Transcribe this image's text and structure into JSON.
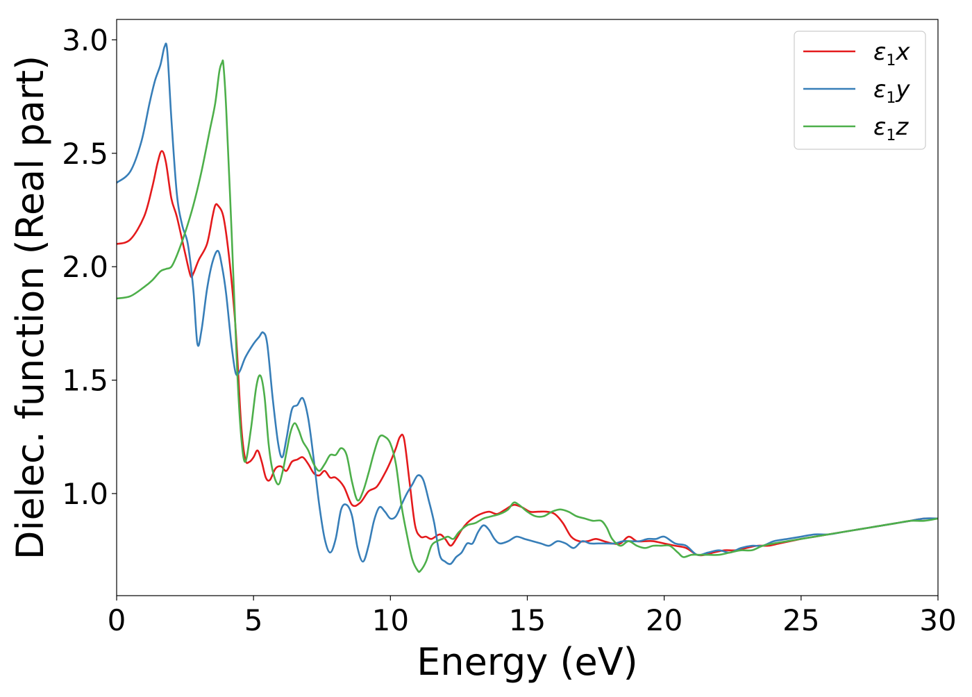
{
  "chart_data": {
    "type": "line",
    "xlabel": "Energy (eV)",
    "ylabel": "Dielec. function (Real part)",
    "xlim": [
      0,
      30
    ],
    "ylim": [
      0.55,
      3.09
    ],
    "xticks": [
      0,
      5,
      10,
      15,
      20,
      25,
      30
    ],
    "xtick_labels": [
      "0",
      "5",
      "10",
      "15",
      "20",
      "25",
      "30"
    ],
    "yticks": [
      1.0,
      1.5,
      2.0,
      2.5,
      3.0
    ],
    "ytick_labels": [
      "1.0",
      "1.5",
      "2.0",
      "2.5",
      "3.0"
    ],
    "grid": false,
    "legend_position": "top-right",
    "series": [
      {
        "name": "ε1x",
        "label_main": "ε",
        "label_sub": "1",
        "label_var": "x",
        "color": "#e41a1c",
        "x": [
          0,
          0.5,
          1.0,
          1.3,
          1.5,
          1.65,
          1.8,
          2.0,
          2.2,
          2.5,
          2.7,
          2.8,
          3.0,
          3.3,
          3.5,
          3.6,
          3.7,
          3.9,
          4.1,
          4.3,
          4.4,
          4.55,
          4.7,
          4.85,
          5.0,
          5.15,
          5.3,
          5.45,
          5.6,
          5.8,
          6.0,
          6.2,
          6.4,
          6.6,
          6.8,
          7.0,
          7.2,
          7.4,
          7.6,
          7.8,
          8.0,
          8.3,
          8.6,
          8.9,
          9.2,
          9.5,
          9.8,
          10.0,
          10.2,
          10.35,
          10.5,
          10.7,
          10.9,
          11.1,
          11.3,
          11.5,
          11.8,
          12.0,
          12.2,
          12.4,
          12.6,
          12.8,
          13.0,
          13.3,
          13.6,
          13.9,
          14.2,
          14.5,
          14.8,
          15.1,
          15.4,
          15.7,
          16.0,
          16.3,
          16.6,
          16.9,
          17.2,
          17.5,
          17.8,
          18.1,
          18.4,
          18.7,
          19.0,
          19.3,
          19.6,
          20.0,
          20.4,
          20.8,
          21.2,
          21.5,
          21.8,
          22.2,
          22.6,
          23.0,
          23.4,
          23.8,
          24.2,
          24.6,
          25.0,
          25.5,
          26.0,
          26.5,
          27.0,
          27.5,
          28.0,
          28.5,
          29.0,
          29.5,
          30.0
        ],
        "y": [
          2.1,
          2.12,
          2.22,
          2.35,
          2.46,
          2.51,
          2.46,
          2.3,
          2.22,
          2.06,
          1.96,
          1.97,
          2.03,
          2.1,
          2.22,
          2.27,
          2.27,
          2.22,
          2.05,
          1.8,
          1.62,
          1.3,
          1.15,
          1.14,
          1.16,
          1.19,
          1.14,
          1.07,
          1.06,
          1.11,
          1.12,
          1.1,
          1.14,
          1.15,
          1.16,
          1.13,
          1.09,
          1.08,
          1.1,
          1.07,
          1.07,
          1.03,
          0.95,
          0.96,
          1.01,
          1.03,
          1.09,
          1.14,
          1.2,
          1.25,
          1.24,
          1.05,
          0.86,
          0.81,
          0.81,
          0.8,
          0.82,
          0.8,
          0.77,
          0.8,
          0.84,
          0.87,
          0.89,
          0.91,
          0.92,
          0.91,
          0.93,
          0.95,
          0.94,
          0.92,
          0.92,
          0.92,
          0.91,
          0.87,
          0.81,
          0.79,
          0.79,
          0.8,
          0.79,
          0.78,
          0.78,
          0.81,
          0.79,
          0.79,
          0.79,
          0.78,
          0.77,
          0.76,
          0.73,
          0.73,
          0.74,
          0.75,
          0.75,
          0.76,
          0.77,
          0.77,
          0.78,
          0.79,
          0.8,
          0.81,
          0.82,
          0.83,
          0.84,
          0.85,
          0.86,
          0.87,
          0.88,
          0.89,
          0.89
        ]
      },
      {
        "name": "ε1y",
        "label_main": "ε",
        "label_sub": "1",
        "label_var": "y",
        "color": "#377eb8",
        "x": [
          0,
          0.5,
          0.9,
          1.2,
          1.4,
          1.6,
          1.75,
          1.85,
          2.0,
          2.2,
          2.4,
          2.6,
          2.8,
          2.95,
          3.1,
          3.3,
          3.5,
          3.7,
          3.85,
          4.0,
          4.2,
          4.35,
          4.5,
          4.7,
          5.0,
          5.2,
          5.35,
          5.5,
          5.7,
          5.9,
          6.05,
          6.2,
          6.4,
          6.6,
          6.8,
          7.0,
          7.2,
          7.4,
          7.6,
          7.8,
          8.0,
          8.2,
          8.4,
          8.6,
          8.8,
          9.0,
          9.2,
          9.4,
          9.6,
          9.8,
          10.0,
          10.2,
          10.4,
          10.6,
          10.8,
          11.0,
          11.2,
          11.4,
          11.6,
          11.8,
          12.0,
          12.2,
          12.4,
          12.6,
          12.8,
          13.0,
          13.2,
          13.4,
          13.6,
          13.8,
          14.0,
          14.3,
          14.6,
          14.9,
          15.2,
          15.5,
          15.8,
          16.1,
          16.4,
          16.7,
          17.0,
          17.3,
          17.6,
          17.9,
          18.2,
          18.5,
          18.8,
          19.1,
          19.4,
          19.7,
          20.0,
          20.4,
          20.8,
          21.2,
          21.6,
          22.0,
          22.4,
          22.8,
          23.2,
          23.6,
          24.0,
          24.5,
          25.0,
          25.5,
          26.0,
          26.5,
          27.0,
          27.5,
          28.0,
          28.5,
          29.0,
          29.5,
          30.0
        ],
        "y": [
          2.37,
          2.42,
          2.55,
          2.72,
          2.82,
          2.89,
          2.97,
          2.95,
          2.65,
          2.32,
          2.18,
          2.1,
          1.9,
          1.66,
          1.72,
          1.9,
          2.02,
          2.07,
          2.0,
          1.88,
          1.65,
          1.53,
          1.54,
          1.6,
          1.66,
          1.69,
          1.71,
          1.66,
          1.42,
          1.22,
          1.16,
          1.24,
          1.37,
          1.39,
          1.42,
          1.33,
          1.15,
          0.95,
          0.8,
          0.74,
          0.8,
          0.93,
          0.95,
          0.9,
          0.76,
          0.7,
          0.77,
          0.88,
          0.94,
          0.92,
          0.89,
          0.9,
          0.95,
          1.0,
          1.04,
          1.08,
          1.06,
          0.97,
          0.87,
          0.73,
          0.7,
          0.69,
          0.72,
          0.74,
          0.78,
          0.78,
          0.83,
          0.86,
          0.84,
          0.8,
          0.78,
          0.79,
          0.81,
          0.8,
          0.79,
          0.78,
          0.77,
          0.79,
          0.78,
          0.76,
          0.79,
          0.78,
          0.78,
          0.78,
          0.78,
          0.79,
          0.79,
          0.79,
          0.8,
          0.8,
          0.81,
          0.78,
          0.77,
          0.73,
          0.74,
          0.75,
          0.74,
          0.76,
          0.77,
          0.77,
          0.79,
          0.8,
          0.81,
          0.82,
          0.82,
          0.83,
          0.84,
          0.85,
          0.86,
          0.87,
          0.88,
          0.89,
          0.89
        ]
      },
      {
        "name": "ε1z",
        "label_main": "ε",
        "label_sub": "1",
        "label_var": "z",
        "color": "#4daf4a",
        "x": [
          0,
          0.5,
          1.0,
          1.3,
          1.6,
          1.8,
          2.0,
          2.2,
          2.5,
          2.8,
          3.1,
          3.4,
          3.6,
          3.75,
          3.85,
          3.9,
          4.0,
          4.2,
          4.4,
          4.55,
          4.7,
          4.9,
          5.1,
          5.25,
          5.4,
          5.55,
          5.7,
          5.9,
          6.05,
          6.2,
          6.35,
          6.5,
          6.65,
          6.8,
          7.0,
          7.2,
          7.4,
          7.6,
          7.8,
          8.0,
          8.2,
          8.4,
          8.6,
          8.8,
          9.0,
          9.2,
          9.4,
          9.6,
          9.8,
          10.0,
          10.2,
          10.4,
          10.6,
          10.8,
          11.0,
          11.1,
          11.3,
          11.5,
          11.7,
          11.9,
          12.1,
          12.3,
          12.5,
          12.8,
          13.1,
          13.4,
          13.7,
          14.0,
          14.3,
          14.5,
          14.7,
          15.0,
          15.3,
          15.6,
          15.9,
          16.2,
          16.5,
          16.8,
          17.1,
          17.4,
          17.7,
          17.9,
          18.1,
          18.4,
          18.7,
          19.0,
          19.3,
          19.6,
          19.9,
          20.2,
          20.5,
          20.7,
          21.0,
          21.3,
          21.6,
          22.0,
          22.4,
          22.8,
          23.2,
          23.6,
          24.0,
          24.5,
          25.0,
          25.5,
          26.0,
          26.5,
          27.0,
          27.5,
          28.0,
          28.5,
          29.0,
          29.5,
          30.0
        ],
        "y": [
          1.86,
          1.87,
          1.91,
          1.94,
          1.98,
          1.99,
          2.0,
          2.05,
          2.15,
          2.27,
          2.42,
          2.6,
          2.72,
          2.86,
          2.9,
          2.89,
          2.7,
          2.15,
          1.55,
          1.25,
          1.14,
          1.28,
          1.47,
          1.52,
          1.43,
          1.22,
          1.1,
          1.04,
          1.09,
          1.18,
          1.27,
          1.31,
          1.28,
          1.23,
          1.19,
          1.13,
          1.1,
          1.13,
          1.17,
          1.17,
          1.2,
          1.17,
          1.05,
          0.97,
          1.01,
          1.09,
          1.18,
          1.25,
          1.25,
          1.22,
          1.13,
          0.95,
          0.82,
          0.71,
          0.66,
          0.66,
          0.7,
          0.77,
          0.79,
          0.8,
          0.81,
          0.8,
          0.83,
          0.86,
          0.87,
          0.89,
          0.9,
          0.91,
          0.93,
          0.96,
          0.95,
          0.92,
          0.9,
          0.9,
          0.92,
          0.93,
          0.92,
          0.9,
          0.89,
          0.88,
          0.88,
          0.85,
          0.8,
          0.77,
          0.79,
          0.77,
          0.76,
          0.77,
          0.77,
          0.77,
          0.74,
          0.72,
          0.73,
          0.73,
          0.73,
          0.73,
          0.74,
          0.75,
          0.75,
          0.77,
          0.78,
          0.79,
          0.8,
          0.81,
          0.82,
          0.83,
          0.84,
          0.85,
          0.86,
          0.87,
          0.88,
          0.88,
          0.89
        ]
      }
    ]
  }
}
